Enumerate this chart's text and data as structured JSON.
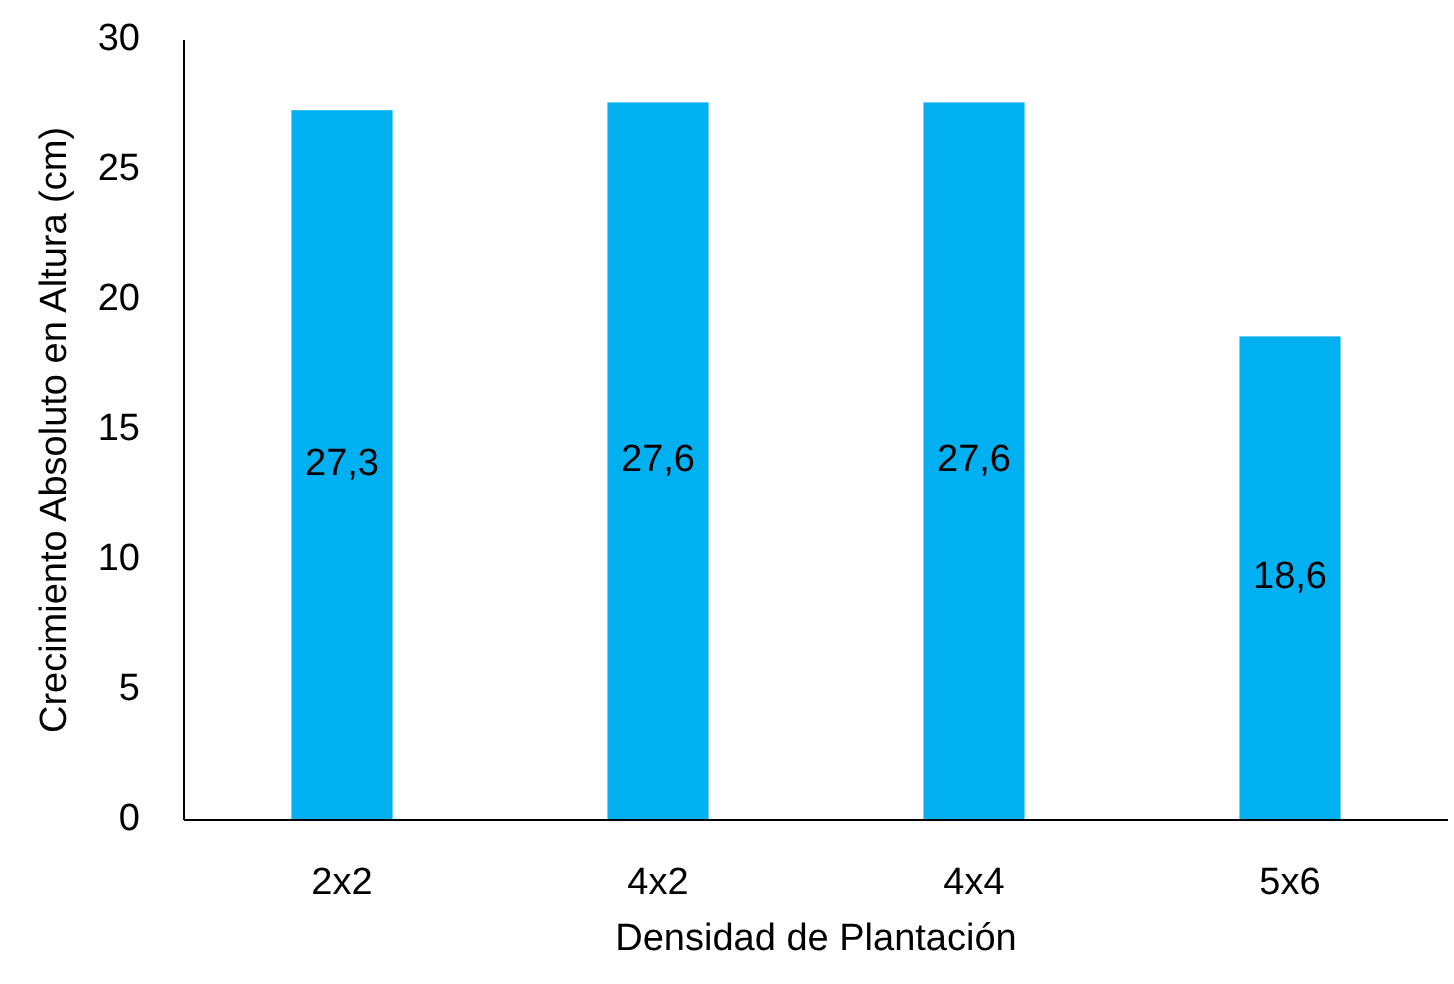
{
  "chart_data": {
    "type": "bar",
    "xlabel": "Densidad de Plantación",
    "ylabel": "Crecimiento Absoluto en Altura (cm)",
    "categories": [
      "2x2",
      "4x2",
      "4x4",
      "5x6"
    ],
    "values": [
      27.3,
      27.6,
      27.6,
      18.6
    ],
    "value_labels": [
      "27,3",
      "27,6",
      "27,6",
      "18,6"
    ],
    "color": "#00b0f0",
    "ylim": [
      0,
      30
    ],
    "yticks": [
      0,
      5,
      10,
      15,
      20,
      25,
      30
    ],
    "grid": false
  }
}
